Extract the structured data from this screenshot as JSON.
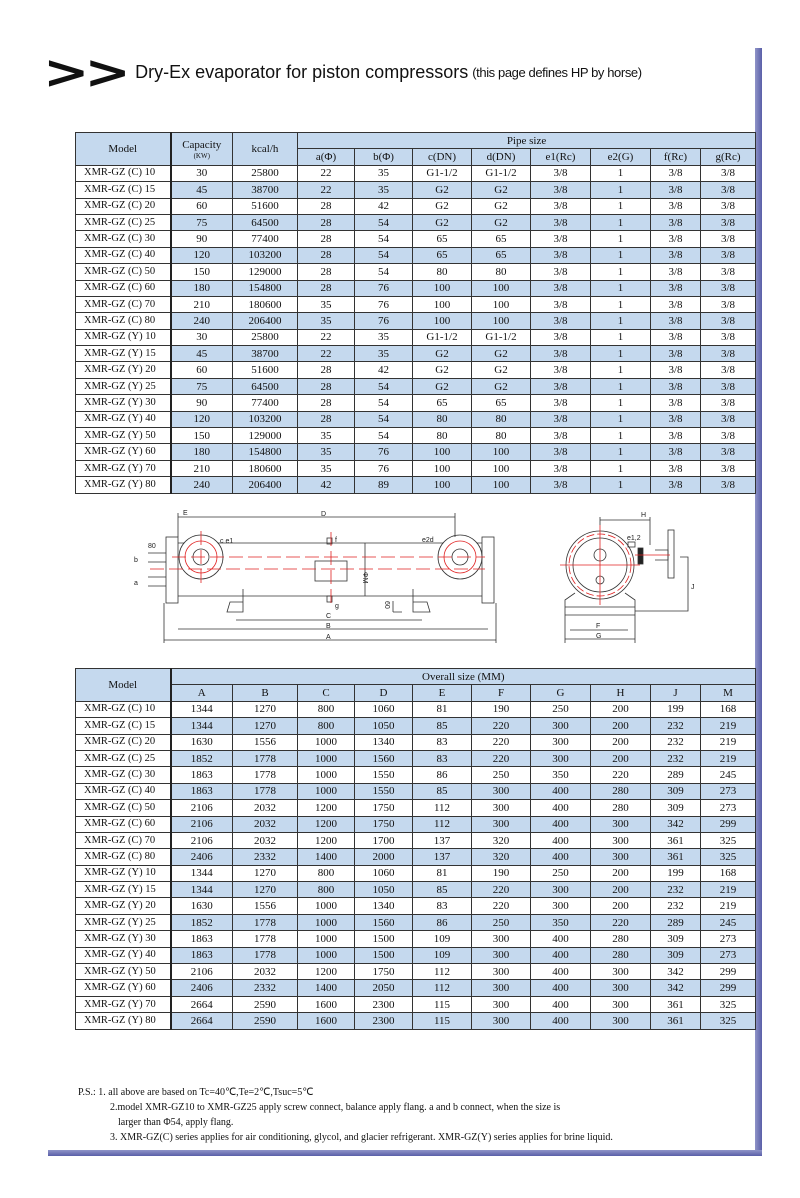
{
  "header": {
    "title": "Dry-Ex evaporator for piston compressors",
    "subtitle": "(this page defines HP by horse)",
    "chevron": ">>"
  },
  "pipe_table": {
    "headers": {
      "model": "Model",
      "capacity": "Capacity",
      "capacity_unit": "(KW)",
      "kcal": "kcal/h",
      "group": "Pipe size",
      "cols": [
        "a(Φ)",
        "b(Φ)",
        "c(DN)",
        "d(DN)",
        "e1(Rc)",
        "e2(G)",
        "f(Rc)",
        "g(Rc)"
      ]
    },
    "rows": [
      [
        "XMR-GZ (C) 10",
        "30",
        "25800",
        "22",
        "35",
        "G1-1/2",
        "G1-1/2",
        "3/8",
        "1",
        "3/8",
        "3/8"
      ],
      [
        "XMR-GZ (C) 15",
        "45",
        "38700",
        "22",
        "35",
        "G2",
        "G2",
        "3/8",
        "1",
        "3/8",
        "3/8"
      ],
      [
        "XMR-GZ (C) 20",
        "60",
        "51600",
        "28",
        "42",
        "G2",
        "G2",
        "3/8",
        "1",
        "3/8",
        "3/8"
      ],
      [
        "XMR-GZ (C) 25",
        "75",
        "64500",
        "28",
        "54",
        "G2",
        "G2",
        "3/8",
        "1",
        "3/8",
        "3/8"
      ],
      [
        "XMR-GZ (C) 30",
        "90",
        "77400",
        "28",
        "54",
        "65",
        "65",
        "3/8",
        "1",
        "3/8",
        "3/8"
      ],
      [
        "XMR-GZ (C) 40",
        "120",
        "103200",
        "28",
        "54",
        "65",
        "65",
        "3/8",
        "1",
        "3/8",
        "3/8"
      ],
      [
        "XMR-GZ (C) 50",
        "150",
        "129000",
        "28",
        "54",
        "80",
        "80",
        "3/8",
        "1",
        "3/8",
        "3/8"
      ],
      [
        "XMR-GZ (C) 60",
        "180",
        "154800",
        "28",
        "76",
        "100",
        "100",
        "3/8",
        "1",
        "3/8",
        "3/8"
      ],
      [
        "XMR-GZ (C) 70",
        "210",
        "180600",
        "35",
        "76",
        "100",
        "100",
        "3/8",
        "1",
        "3/8",
        "3/8"
      ],
      [
        "XMR-GZ (C) 80",
        "240",
        "206400",
        "35",
        "76",
        "100",
        "100",
        "3/8",
        "1",
        "3/8",
        "3/8"
      ],
      [
        "XMR-GZ (Y) 10",
        "30",
        "25800",
        "22",
        "35",
        "G1-1/2",
        "G1-1/2",
        "3/8",
        "1",
        "3/8",
        "3/8"
      ],
      [
        "XMR-GZ (Y) 15",
        "45",
        "38700",
        "22",
        "35",
        "G2",
        "G2",
        "3/8",
        "1",
        "3/8",
        "3/8"
      ],
      [
        "XMR-GZ (Y) 20",
        "60",
        "51600",
        "28",
        "42",
        "G2",
        "G2",
        "3/8",
        "1",
        "3/8",
        "3/8"
      ],
      [
        "XMR-GZ (Y) 25",
        "75",
        "64500",
        "28",
        "54",
        "G2",
        "G2",
        "3/8",
        "1",
        "3/8",
        "3/8"
      ],
      [
        "XMR-GZ (Y) 30",
        "90",
        "77400",
        "28",
        "54",
        "65",
        "65",
        "3/8",
        "1",
        "3/8",
        "3/8"
      ],
      [
        "XMR-GZ (Y) 40",
        "120",
        "103200",
        "28",
        "54",
        "80",
        "80",
        "3/8",
        "1",
        "3/8",
        "3/8"
      ],
      [
        "XMR-GZ (Y) 50",
        "150",
        "129000",
        "35",
        "54",
        "80",
        "80",
        "3/8",
        "1",
        "3/8",
        "3/8"
      ],
      [
        "XMR-GZ (Y) 60",
        "180",
        "154800",
        "35",
        "76",
        "100",
        "100",
        "3/8",
        "1",
        "3/8",
        "3/8"
      ],
      [
        "XMR-GZ (Y) 70",
        "210",
        "180600",
        "35",
        "76",
        "100",
        "100",
        "3/8",
        "1",
        "3/8",
        "3/8"
      ],
      [
        "XMR-GZ (Y) 80",
        "240",
        "206400",
        "42",
        "89",
        "100",
        "100",
        "3/8",
        "1",
        "3/8",
        "3/8"
      ]
    ]
  },
  "diagram": {
    "side": {
      "E": "E",
      "D": "D",
      "ce1": "c e1",
      "f": "f",
      "e2d": "e2d",
      "b": "b",
      "a": "a",
      "d80": "80",
      "phiM": "ΦM",
      "d60": "60",
      "g": "g",
      "C": "C",
      "B": "B",
      "A": "A"
    },
    "end": {
      "H": "H",
      "e12": "e1,2",
      "J": "J",
      "F": "F",
      "G": "G"
    }
  },
  "size_table": {
    "headers": {
      "model": "Model",
      "group": "Overall size (MM)",
      "cols": [
        "A",
        "B",
        "C",
        "D",
        "E",
        "F",
        "G",
        "H",
        "J",
        "M"
      ]
    },
    "rows": [
      [
        "XMR-GZ (C) 10",
        "1344",
        "1270",
        "800",
        "1060",
        "81",
        "190",
        "250",
        "200",
        "199",
        "168"
      ],
      [
        "XMR-GZ (C) 15",
        "1344",
        "1270",
        "800",
        "1050",
        "85",
        "220",
        "300",
        "200",
        "232",
        "219"
      ],
      [
        "XMR-GZ (C) 20",
        "1630",
        "1556",
        "1000",
        "1340",
        "83",
        "220",
        "300",
        "200",
        "232",
        "219"
      ],
      [
        "XMR-GZ (C) 25",
        "1852",
        "1778",
        "1000",
        "1560",
        "83",
        "220",
        "300",
        "200",
        "232",
        "219"
      ],
      [
        "XMR-GZ (C) 30",
        "1863",
        "1778",
        "1000",
        "1550",
        "86",
        "250",
        "350",
        "220",
        "289",
        "245"
      ],
      [
        "XMR-GZ (C) 40",
        "1863",
        "1778",
        "1000",
        "1550",
        "85",
        "300",
        "400",
        "280",
        "309",
        "273"
      ],
      [
        "XMR-GZ (C) 50",
        "2106",
        "2032",
        "1200",
        "1750",
        "112",
        "300",
        "400",
        "280",
        "309",
        "273"
      ],
      [
        "XMR-GZ (C) 60",
        "2106",
        "2032",
        "1200",
        "1750",
        "112",
        "300",
        "400",
        "300",
        "342",
        "299"
      ],
      [
        "XMR-GZ (C) 70",
        "2106",
        "2032",
        "1200",
        "1700",
        "137",
        "320",
        "400",
        "300",
        "361",
        "325"
      ],
      [
        "XMR-GZ (C) 80",
        "2406",
        "2332",
        "1400",
        "2000",
        "137",
        "320",
        "400",
        "300",
        "361",
        "325"
      ],
      [
        "XMR-GZ (Y) 10",
        "1344",
        "1270",
        "800",
        "1060",
        "81",
        "190",
        "250",
        "200",
        "199",
        "168"
      ],
      [
        "XMR-GZ (Y) 15",
        "1344",
        "1270",
        "800",
        "1050",
        "85",
        "220",
        "300",
        "200",
        "232",
        "219"
      ],
      [
        "XMR-GZ (Y) 20",
        "1630",
        "1556",
        "1000",
        "1340",
        "83",
        "220",
        "300",
        "200",
        "232",
        "219"
      ],
      [
        "XMR-GZ (Y) 25",
        "1852",
        "1778",
        "1000",
        "1560",
        "86",
        "250",
        "350",
        "220",
        "289",
        "245"
      ],
      [
        "XMR-GZ (Y) 30",
        "1863",
        "1778",
        "1000",
        "1500",
        "109",
        "300",
        "400",
        "280",
        "309",
        "273"
      ],
      [
        "XMR-GZ (Y) 40",
        "1863",
        "1778",
        "1000",
        "1500",
        "109",
        "300",
        "400",
        "280",
        "309",
        "273"
      ],
      [
        "XMR-GZ (Y) 50",
        "2106",
        "2032",
        "1200",
        "1750",
        "112",
        "300",
        "400",
        "300",
        "342",
        "299"
      ],
      [
        "XMR-GZ (Y) 60",
        "2406",
        "2332",
        "1400",
        "2050",
        "112",
        "300",
        "400",
        "300",
        "342",
        "299"
      ],
      [
        "XMR-GZ (Y) 70",
        "2664",
        "2590",
        "1600",
        "2300",
        "115",
        "300",
        "400",
        "300",
        "361",
        "325"
      ],
      [
        "XMR-GZ (Y) 80",
        "2664",
        "2590",
        "1600",
        "2300",
        "115",
        "300",
        "400",
        "300",
        "361",
        "325"
      ]
    ]
  },
  "notes": {
    "prefix": "P.S.:",
    "n1": "1. all above are based on Tc=40℃,Te=2℃,Tsuc=5℃",
    "n2a": "2.model XMR-GZ10 to XMR-GZ25 apply screw connect, balance apply flang. a and b connect, when the size is",
    "n2b": "larger than Φ54, apply flang.",
    "n3": "3. XMR-GZ(C) series applies for air conditioning, glycol, and glacier refrigerant. XMR-GZ(Y) series applies for brine liquid."
  },
  "colors": {
    "header_fill": "#c5d9ee",
    "alt_row_fill": "#c5d9ee",
    "frame_shadow": "#6a6fb4",
    "centerline": "#e02020"
  }
}
